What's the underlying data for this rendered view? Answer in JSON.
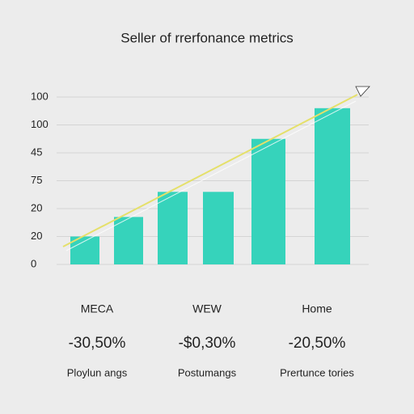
{
  "chart_data": {
    "type": "bar",
    "title": "Seller of rrerfonance metrics",
    "categories": [
      null,
      null,
      null,
      null,
      null,
      null
    ],
    "values": [
      1.0,
      1.7,
      2.6,
      2.6,
      4.5,
      5.6
    ],
    "color": "#36d3bb",
    "ylim": [
      0,
      6
    ],
    "yticks": [
      0,
      {
        "value": 1,
        "label": "20"
      },
      {
        "value": 2,
        "label": "20"
      },
      {
        "value": 3,
        "label": "75"
      },
      {
        "value": 4,
        "label": "45"
      },
      {
        "value": 5,
        "label": "100"
      },
      {
        "value": 6,
        "label": "100"
      }
    ],
    "grid": true,
    "summary": [
      {
        "name": "MECA",
        "metric": "-30,50%",
        "caption": "Ploylun angs"
      },
      {
        "name": "WEW",
        "metric": "-$0,30%",
        "caption": "Postumangs"
      },
      {
        "name": "Home",
        "metric": "-20,50%",
        "caption": "Prertunce tories"
      }
    ]
  }
}
